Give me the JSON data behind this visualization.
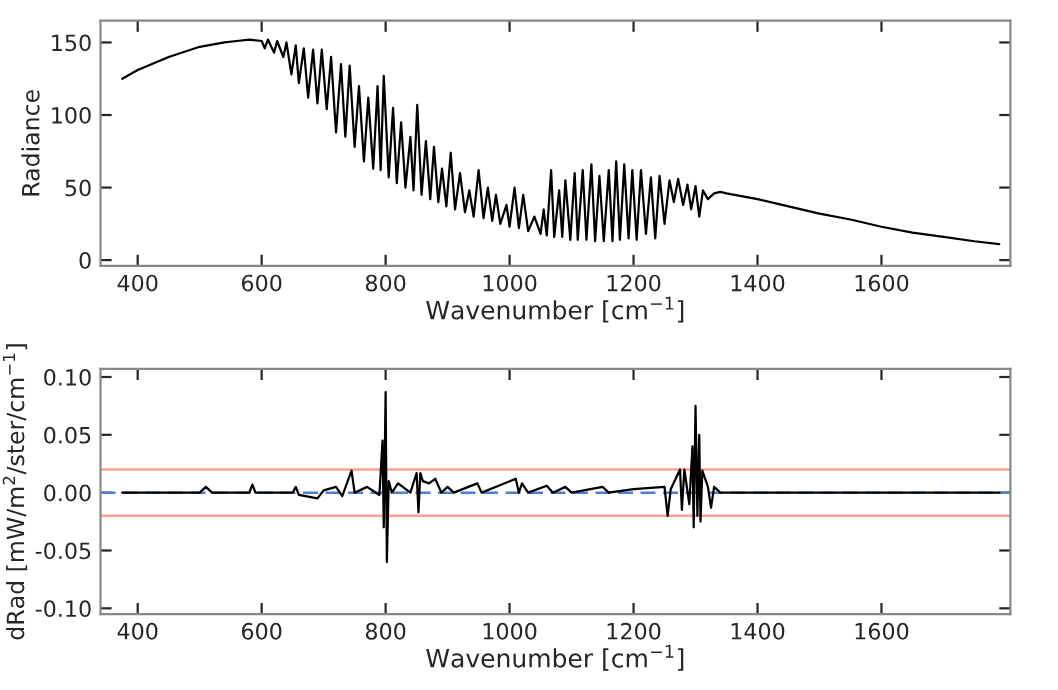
{
  "chart_data": [
    {
      "type": "line",
      "xlabel": "Wavenumber [cm$^{−1}$]",
      "ylabel": "Radiance",
      "xlim": [
        340,
        1808
      ],
      "ylim": [
        -4,
        165
      ],
      "xticks": [
        400,
        600,
        800,
        1000,
        1200,
        1400,
        1600
      ],
      "yticks": [
        0,
        50,
        100,
        150
      ],
      "grid": false,
      "legend": false,
      "series": [
        {
          "color": "#000000",
          "x": [
            375,
            400,
            450,
            500,
            540,
            560,
            580,
            600,
            605,
            610,
            620,
            625,
            635,
            640,
            648,
            655,
            660,
            668,
            675,
            683,
            690,
            697,
            705,
            712,
            720,
            728,
            735,
            742,
            750,
            757,
            765,
            772,
            780,
            787,
            792,
            797,
            805,
            812,
            818,
            825,
            832,
            840,
            845,
            851,
            858,
            865,
            872,
            878,
            885,
            891,
            898,
            905,
            912,
            920,
            928,
            935,
            942,
            950,
            958,
            965,
            972,
            978,
            985,
            995,
            1000,
            1008,
            1015,
            1022,
            1030,
            1040,
            1050,
            1055,
            1060,
            1067,
            1072,
            1080,
            1085,
            1090,
            1098,
            1105,
            1110,
            1118,
            1124,
            1132,
            1138,
            1145,
            1152,
            1160,
            1166,
            1172,
            1178,
            1185,
            1192,
            1198,
            1205,
            1212,
            1220,
            1228,
            1235,
            1242,
            1250,
            1258,
            1265,
            1272,
            1280,
            1287,
            1293,
            1300,
            1306,
            1312,
            1320,
            1330,
            1340,
            1350,
            1400,
            1450,
            1500,
            1550,
            1600,
            1650,
            1700,
            1750,
            1790
          ],
          "values": [
            125,
            131,
            140,
            147,
            150,
            151,
            152,
            151,
            146,
            152,
            143,
            151,
            140,
            150,
            128,
            148,
            122,
            146,
            112,
            145,
            108,
            145,
            104,
            140,
            88,
            135,
            85,
            134,
            78,
            120,
            68,
            112,
            63,
            120,
            62,
            127,
            57,
            105,
            53,
            95,
            50,
            85,
            48,
            107,
            45,
            82,
            42,
            78,
            40,
            63,
            37,
            74,
            35,
            60,
            33,
            48,
            30,
            62,
            29,
            50,
            27,
            45,
            25,
            38,
            23,
            50,
            22,
            45,
            20,
            30,
            18,
            35,
            17,
            62,
            16,
            48,
            16,
            55,
            14,
            60,
            14,
            62,
            14,
            66,
            13,
            58,
            13,
            62,
            13,
            68,
            14,
            66,
            15,
            62,
            14,
            62,
            18,
            57,
            15,
            58,
            25,
            55,
            40,
            56,
            38,
            52,
            35,
            51,
            30,
            48,
            42,
            46,
            47,
            46,
            42,
            37,
            32,
            28,
            23,
            19,
            16,
            13,
            11
          ]
        }
      ]
    },
    {
      "type": "line",
      "xlabel": "Wavenumber [cm$^{−1}$]",
      "ylabel": "dRad [mW/m$^{2}$/ster/cm$^{−1}$]",
      "xlim": [
        340,
        1808
      ],
      "ylim": [
        -0.105,
        0.107
      ],
      "xticks": [
        400,
        600,
        800,
        1000,
        1200,
        1400,
        1600
      ],
      "yticks": [
        {
          "value": -0.1,
          "label": "-0.10"
        },
        {
          "value": -0.05,
          "label": "-0.05"
        },
        {
          "value": 0,
          "label": "0.00"
        },
        {
          "value": 0.05,
          "label": "0.05"
        },
        {
          "value": 0.1,
          "label": "0.10"
        }
      ],
      "grid": false,
      "legend": false,
      "ref_lines": [
        {
          "axis": "y",
          "value": 0.02,
          "color": "#ffa090",
          "line_style": "solid"
        },
        {
          "axis": "y",
          "value": -0.02,
          "color": "#ffa090",
          "line_style": "solid"
        },
        {
          "axis": "y",
          "value": 0,
          "color": "#4f7fd0",
          "line_style": "dashed"
        }
      ],
      "series": [
        {
          "color": "#000000",
          "x": [
            375,
            500,
            510,
            520,
            580,
            585,
            590,
            650,
            655,
            660,
            690,
            700,
            720,
            730,
            745,
            750,
            770,
            790,
            795,
            797,
            800,
            802,
            805,
            810,
            820,
            840,
            850,
            853,
            856,
            860,
            870,
            880,
            890,
            900,
            910,
            948,
            955,
            1010,
            1015,
            1020,
            1030,
            1060,
            1070,
            1090,
            1100,
            1150,
            1160,
            1200,
            1250,
            1255,
            1260,
            1275,
            1278,
            1282,
            1290,
            1295,
            1297,
            1300,
            1303,
            1306,
            1308,
            1311,
            1320,
            1325,
            1330,
            1340,
            1790
          ],
          "values": [
            0,
            0,
            0.005,
            0,
            0,
            0.007,
            0,
            0,
            0.005,
            -0.002,
            -0.005,
            0.002,
            0.005,
            -0.003,
            0.019,
            0,
            0.005,
            -0.002,
            0.045,
            -0.03,
            0.087,
            -0.06,
            0.01,
            0,
            0.008,
            0,
            0.017,
            -0.017,
            0.017,
            0.01,
            0.008,
            0.012,
            0,
            0.005,
            0,
            0.008,
            0,
            0.012,
            0,
            0.008,
            0,
            0.006,
            0,
            0.005,
            0,
            0.005,
            0,
            0.003,
            0.005,
            -0.02,
            0.003,
            0.02,
            -0.015,
            0.02,
            -0.01,
            0.04,
            -0.03,
            0.075,
            -0.02,
            0.05,
            -0.025,
            0.019,
            0.005,
            -0.013,
            0.005,
            0,
            0
          ]
        }
      ]
    }
  ]
}
